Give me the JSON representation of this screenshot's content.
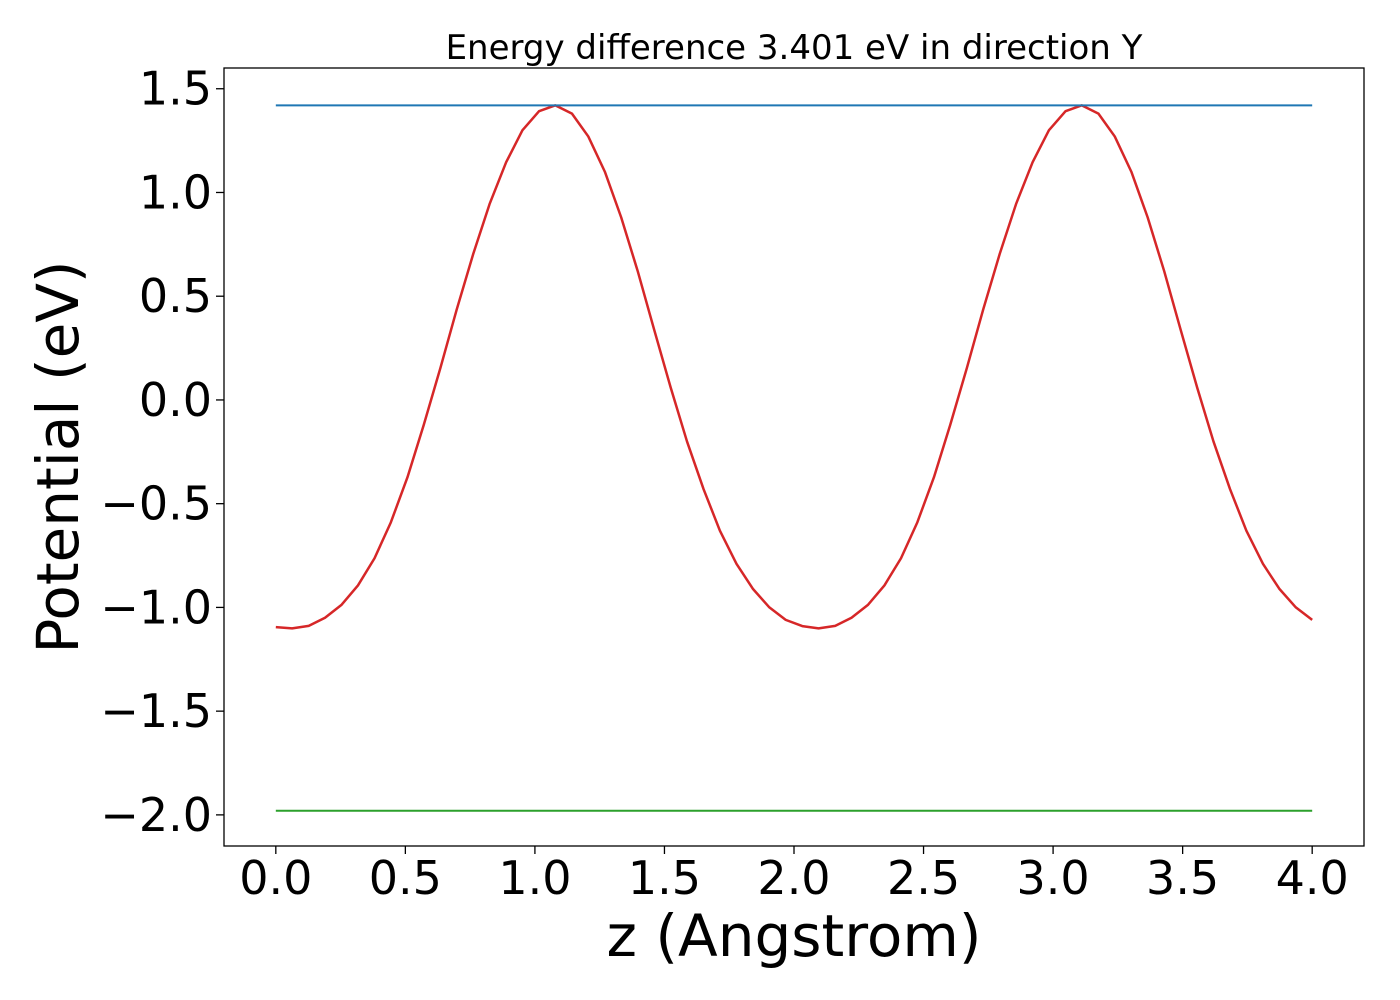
{
  "chart_data": {
    "type": "line",
    "title": "Energy difference 3.401 eV in direction Y",
    "xlabel": "z (Angstrom)",
    "ylabel": "Potential (eV)",
    "xlim": [
      -0.2,
      4.2
    ],
    "ylim": [
      -2.15,
      1.6
    ],
    "xticks": [
      0.0,
      0.5,
      1.0,
      1.5,
      2.0,
      2.5,
      3.0,
      3.5,
      4.0
    ],
    "xtick_labels": [
      "0.0",
      "0.5",
      "1.0",
      "1.5",
      "2.0",
      "2.5",
      "3.0",
      "3.5",
      "4.0"
    ],
    "yticks": [
      1.5,
      1.0,
      0.5,
      0.0,
      -0.5,
      -1.0,
      -1.5,
      -2.0
    ],
    "ytick_labels": [
      "1.5",
      "1.0",
      "0.5",
      "0.0",
      "−0.5",
      "−1.0",
      "−1.5",
      "−2.0"
    ],
    "grid": false,
    "series": [
      {
        "color": "#d62728",
        "x": [
          0.0,
          0.063,
          0.127,
          0.19,
          0.254,
          0.317,
          0.381,
          0.444,
          0.508,
          0.571,
          0.635,
          0.698,
          0.762,
          0.825,
          0.889,
          0.952,
          1.016,
          1.079,
          1.143,
          1.206,
          1.27,
          1.333,
          1.397,
          1.46,
          1.524,
          1.587,
          1.651,
          1.714,
          1.778,
          1.841,
          1.905,
          1.968,
          2.032,
          2.095,
          2.159,
          2.222,
          2.286,
          2.349,
          2.413,
          2.476,
          2.54,
          2.603,
          2.667,
          2.73,
          2.794,
          2.857,
          2.921,
          2.984,
          3.048,
          3.111,
          3.175,
          3.238,
          3.302,
          3.365,
          3.429,
          3.492,
          3.556,
          3.619,
          3.683,
          3.746,
          3.81,
          3.873,
          3.937,
          4.0
        ],
        "y": [
          -1.095,
          -1.101,
          -1.089,
          -1.05,
          -0.987,
          -0.894,
          -0.763,
          -0.59,
          -0.373,
          -0.12,
          0.153,
          0.435,
          0.704,
          0.944,
          1.146,
          1.3,
          1.392,
          1.42,
          1.38,
          1.27,
          1.1,
          0.88,
          0.62,
          0.34,
          0.06,
          -0.2,
          -0.43,
          -0.63,
          -0.79,
          -0.91,
          -1.0,
          -1.06,
          -1.09,
          -1.101,
          -1.089,
          -1.05,
          -0.987,
          -0.894,
          -0.763,
          -0.59,
          -0.373,
          -0.12,
          0.153,
          0.435,
          0.704,
          0.944,
          1.146,
          1.3,
          1.392,
          1.42,
          1.38,
          1.27,
          1.1,
          0.88,
          0.62,
          0.34,
          0.06,
          -0.2,
          -0.43,
          -0.63,
          -0.79,
          -0.91,
          -1.0,
          -1.06
        ]
      },
      {
        "color": "#1f77b4",
        "x": [
          0.0,
          4.0
        ],
        "y": [
          1.42,
          1.42
        ]
      },
      {
        "color": "#2ca02c",
        "x": [
          0.0,
          4.0
        ],
        "y": [
          -1.98,
          -1.98
        ]
      }
    ]
  }
}
